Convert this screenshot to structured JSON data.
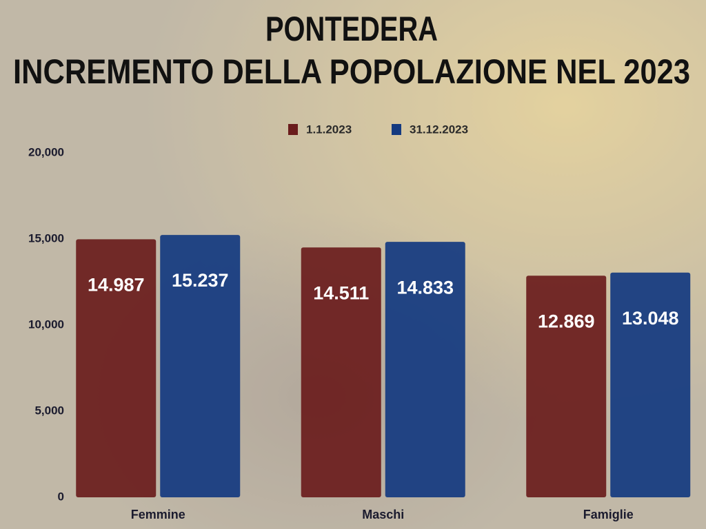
{
  "chart_data": {
    "type": "bar",
    "title": "PONTEDERA",
    "subtitle": "INCREMENTO DELLA POPOLAZIONE NEL 2023",
    "categories": [
      "Femmine",
      "Maschi",
      "Famiglie"
    ],
    "series": [
      {
        "name": "1.1.2023",
        "color": "#6a1c1c",
        "values": [
          14987,
          14511,
          12869
        ],
        "value_labels": [
          "14.987",
          "14.511",
          "12.869"
        ]
      },
      {
        "name": "31.12.2023",
        "color": "#143a80",
        "values": [
          15237,
          14833,
          13048
        ],
        "value_labels": [
          "15.237",
          "14.833",
          "13.048"
        ]
      }
    ],
    "ylim": [
      0,
      20000
    ],
    "yticks": [
      0,
      {
        "value": 5000,
        "label": "5,000"
      },
      {
        "value": 10000,
        "label": "10,000"
      },
      {
        "value": 15000,
        "label": "15,000"
      },
      {
        "value": 20000,
        "label": "20,000"
      }
    ],
    "grid": false
  }
}
